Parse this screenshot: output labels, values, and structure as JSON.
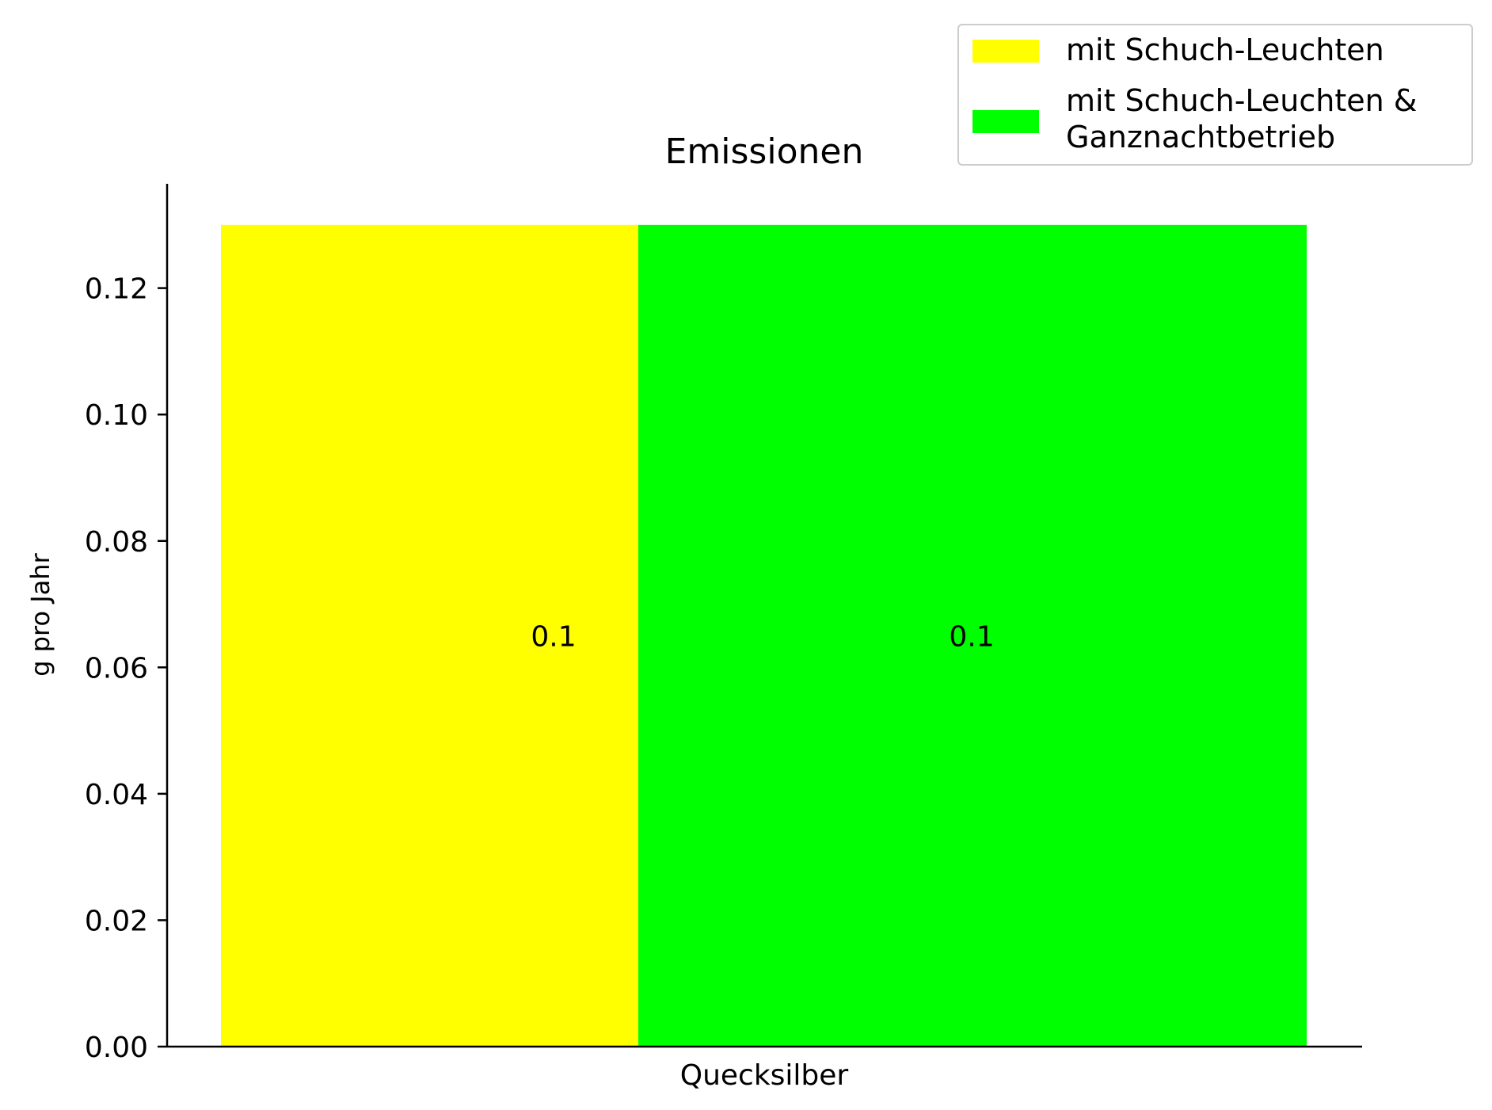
{
  "chart_data": {
    "type": "bar",
    "title": "Emissionen",
    "xlabel": "",
    "ylabel": "g pro Jahr",
    "categories": [
      "Quecksilber"
    ],
    "series": [
      {
        "name": "mit Schuch-Leuchten",
        "values": [
          0.13
        ],
        "label": "0.1",
        "color": "#ffff00"
      },
      {
        "name": "mit Schuch-Leuchten &\nGanznachtbetrieb",
        "values": [
          0.13
        ],
        "label": "0.1",
        "color": "#00ff00"
      }
    ],
    "ylim": [
      0,
      0.1365
    ],
    "yticks": [
      "0.00",
      "0.02",
      "0.04",
      "0.06",
      "0.08",
      "0.10",
      "0.12"
    ],
    "grid": false,
    "legend_position": "top-right"
  }
}
